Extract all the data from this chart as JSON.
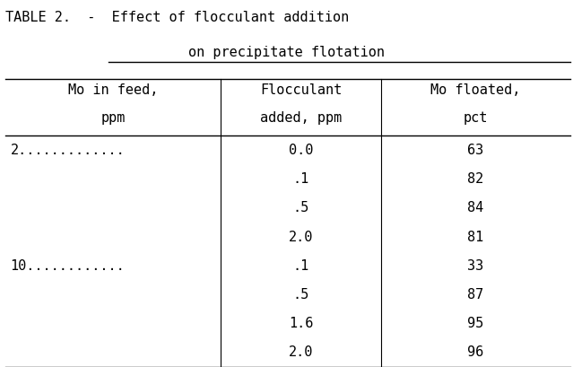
{
  "title_line1": "TABLE 2.  -  Effect of flocculant addition",
  "title_line2": "on precipitate flotation",
  "col_headers_line1": [
    "Mo in feed,",
    "Flocculant",
    "Mo floated,"
  ],
  "col_headers_line2": [
    "ppm",
    "added, ppm",
    "pct"
  ],
  "col1_map": {
    "0": "2.............",
    "4": "10............"
  },
  "col2_entries": [
    "0.0",
    ".1",
    ".5",
    "2.0",
    ".1",
    ".5",
    "1.6",
    "2.0"
  ],
  "col3_entries": [
    "63",
    "82",
    "84",
    "81",
    "33",
    "87",
    "95",
    "96"
  ],
  "bg_color": "#ffffff",
  "text_color": "#000000",
  "font_family": "monospace",
  "font_size": 11,
  "title_font_size": 11
}
